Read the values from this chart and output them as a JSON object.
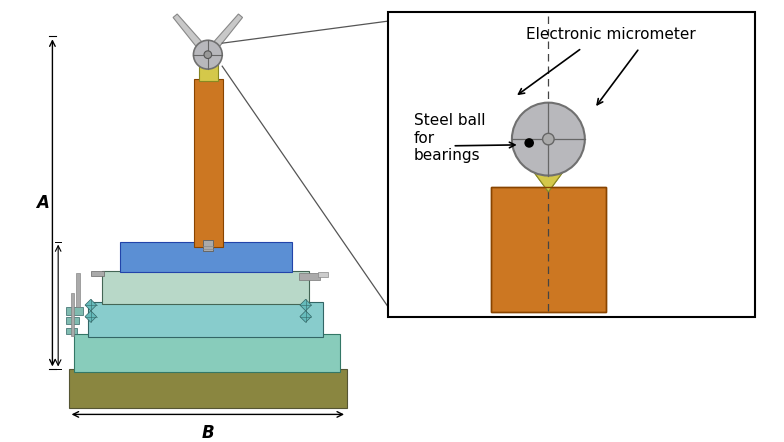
{
  "bg_color": "#ffffff",
  "colors": {
    "orange": "#cc7722",
    "yellow": "#d4c84a",
    "blue": "#5b8fd4",
    "light_green": "#b8d8c8",
    "cyan": "#88cccc",
    "teal": "#78c0b0",
    "mint": "#90d0b8",
    "olive": "#8a8640",
    "gray": "#a0a0a0",
    "light_gray": "#c8c8c8",
    "dark_gray": "#606060",
    "mid_gray": "#909090",
    "black": "#000000",
    "white": "#ffffff",
    "steel_gray": "#b0b0b4"
  },
  "label_A": "A",
  "label_B": "B",
  "label_electronic_micrometer": "Electronic micrometer",
  "label_steel_ball": "Steel ball\nfor\nbearings"
}
